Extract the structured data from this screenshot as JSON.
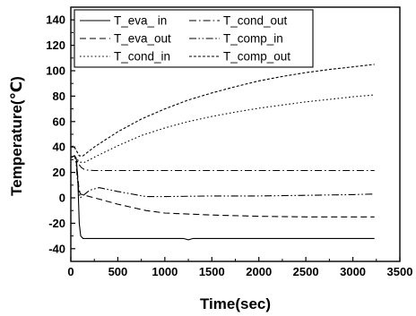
{
  "chart_data": {
    "type": "line",
    "xlabel": "Time(sec)",
    "ylabel": "Temperature(℃)",
    "xlim": [
      0,
      3500
    ],
    "ylim": [
      -50,
      150
    ],
    "xticks": [
      "0",
      "500",
      "1000",
      "1500",
      "2000",
      "2500",
      "3000",
      "3500"
    ],
    "yticks": [
      "-40",
      "-20",
      "0",
      "20",
      "40",
      "60",
      "80",
      "100",
      "120",
      "140"
    ],
    "grid": false,
    "legend_position": "top",
    "series": [
      {
        "name": "T_eva_ in",
        "dash": "solid",
        "points": [
          [
            0,
            32
          ],
          [
            40,
            33
          ],
          [
            60,
            30
          ],
          [
            75,
            12
          ],
          [
            90,
            -20
          ],
          [
            105,
            -30
          ],
          [
            130,
            -32
          ],
          [
            200,
            -32
          ],
          [
            300,
            -32
          ],
          [
            500,
            -32
          ],
          [
            800,
            -32
          ],
          [
            1200,
            -32
          ],
          [
            1250,
            -33
          ],
          [
            1300,
            -32
          ],
          [
            1600,
            -32
          ],
          [
            2000,
            -32
          ],
          [
            2500,
            -32
          ],
          [
            3000,
            -32
          ],
          [
            3230,
            -32
          ]
        ]
      },
      {
        "name": "T_eva_out",
        "dash": "dash",
        "points": [
          [
            0,
            32
          ],
          [
            40,
            33
          ],
          [
            55,
            30
          ],
          [
            70,
            20
          ],
          [
            85,
            8
          ],
          [
            100,
            3
          ],
          [
            150,
            2
          ],
          [
            300,
            -1
          ],
          [
            500,
            -5
          ],
          [
            800,
            -10
          ],
          [
            1000,
            -12
          ],
          [
            1500,
            -13.5
          ],
          [
            2000,
            -14.5
          ],
          [
            2500,
            -15
          ],
          [
            3000,
            -15
          ],
          [
            3230,
            -15
          ]
        ]
      },
      {
        "name": "T_cond_in",
        "dash": "dot",
        "points": [
          [
            0,
            32
          ],
          [
            40,
            32
          ],
          [
            70,
            30
          ],
          [
            100,
            28
          ],
          [
            150,
            28
          ],
          [
            250,
            32
          ],
          [
            500,
            41
          ],
          [
            750,
            49
          ],
          [
            1000,
            55
          ],
          [
            1250,
            60
          ],
          [
            1500,
            64
          ],
          [
            1750,
            67.5
          ],
          [
            2000,
            70.5
          ],
          [
            2250,
            73
          ],
          [
            2500,
            75.5
          ],
          [
            2750,
            77.5
          ],
          [
            3000,
            79.5
          ],
          [
            3230,
            81
          ]
        ]
      },
      {
        "name": "T_cond_out",
        "dash": "dashdot",
        "points": [
          [
            0,
            32
          ],
          [
            40,
            33
          ],
          [
            60,
            31
          ],
          [
            80,
            27
          ],
          [
            110,
            24
          ],
          [
            150,
            22
          ],
          [
            250,
            21.5
          ],
          [
            500,
            21.5
          ],
          [
            1000,
            21.5
          ],
          [
            1500,
            21.5
          ],
          [
            2000,
            21.5
          ],
          [
            2500,
            21.5
          ],
          [
            3000,
            21.5
          ],
          [
            3230,
            21.5
          ]
        ]
      },
      {
        "name": "T_comp_in",
        "dash": "dashdotdot",
        "points": [
          [
            0,
            32
          ],
          [
            40,
            33
          ],
          [
            55,
            28
          ],
          [
            70,
            15
          ],
          [
            85,
            5
          ],
          [
            100,
            0
          ],
          [
            200,
            6
          ],
          [
            300,
            8
          ],
          [
            500,
            5
          ],
          [
            800,
            1
          ],
          [
            1000,
            1
          ],
          [
            1500,
            1.5
          ],
          [
            2000,
            1.5
          ],
          [
            2500,
            2
          ],
          [
            3000,
            2.5
          ],
          [
            3230,
            3
          ]
        ]
      },
      {
        "name": "T_comp_out",
        "dash": "shortdash",
        "points": [
          [
            0,
            40
          ],
          [
            30,
            41
          ],
          [
            60,
            37
          ],
          [
            90,
            33
          ],
          [
            130,
            33
          ],
          [
            250,
            40
          ],
          [
            500,
            52
          ],
          [
            750,
            62
          ],
          [
            1000,
            70
          ],
          [
            1250,
            77
          ],
          [
            1500,
            82.5
          ],
          [
            1750,
            87.5
          ],
          [
            2000,
            92
          ],
          [
            2250,
            95.5
          ],
          [
            2500,
            98.5
          ],
          [
            2750,
            101
          ],
          [
            3000,
            103
          ],
          [
            3230,
            105
          ]
        ]
      }
    ]
  }
}
